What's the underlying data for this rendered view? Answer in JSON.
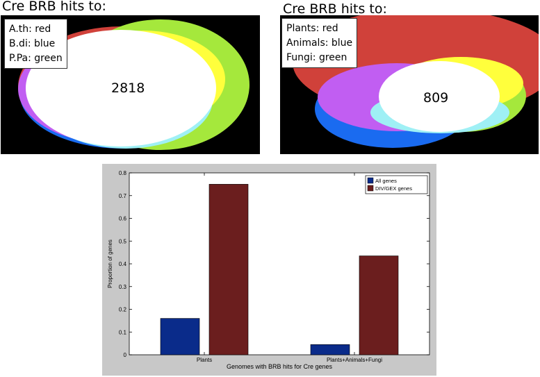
{
  "venn_left": {
    "title": "Cre BRB hits to:",
    "legend": [
      "A.th: red",
      "B.di: blue",
      "P.Pa: green"
    ],
    "count": "2818",
    "colors": {
      "red": "#d0413a",
      "blue": "#1a6bf0",
      "green": "#a5e83c",
      "yellow": "#ffff3c",
      "magenta": "#c15ef2",
      "cyan": "#9ff0f5",
      "white": "#ffffff"
    }
  },
  "venn_right": {
    "title": "Cre BRB hits to:",
    "legend": [
      "Plants: red",
      "Animals: blue",
      "Fungi: green"
    ],
    "count": "809"
  },
  "chart_data": {
    "type": "bar",
    "categories": [
      "Plants",
      "Plants+Animals+Fungi"
    ],
    "series": [
      {
        "name": "All genes",
        "values": [
          0.16,
          0.045
        ],
        "color": "#0a2b8a"
      },
      {
        "name": "DIV/GEX genes",
        "values": [
          0.75,
          0.435
        ],
        "color": "#6b1e1e"
      }
    ],
    "xlabel": "Genomes with BRB hits for Cre genes",
    "ylabel": "Proportion of genes",
    "ylim": [
      0,
      0.8
    ],
    "yticks": [
      "0",
      "0.1",
      "0.2",
      "0.3",
      "0.4",
      "0.5",
      "0.6",
      "0.7",
      "0.8"
    ],
    "grid": false,
    "legend_position": "top-right"
  }
}
